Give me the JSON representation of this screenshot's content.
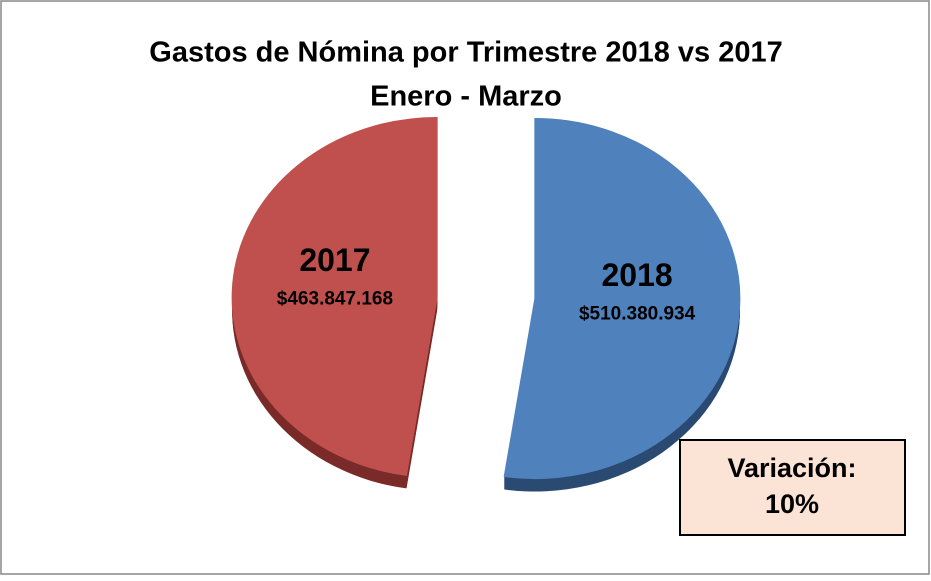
{
  "chart_data": {
    "type": "pie",
    "title": "Gastos de Nómina por Trimestre 2018 vs 2017",
    "subtitle": "Enero - Marzo",
    "categories": [
      "2018",
      "2017"
    ],
    "values": [
      510380934,
      463847168
    ],
    "value_labels": [
      "$510.380.934",
      "$463.847.168"
    ],
    "colors": [
      "#4f81bd",
      "#c0504d"
    ],
    "depth_colors": [
      "#2a4a72",
      "#7a2b29"
    ],
    "annotation": {
      "text": "Variación:",
      "value": 10,
      "value_label": "10%"
    }
  }
}
